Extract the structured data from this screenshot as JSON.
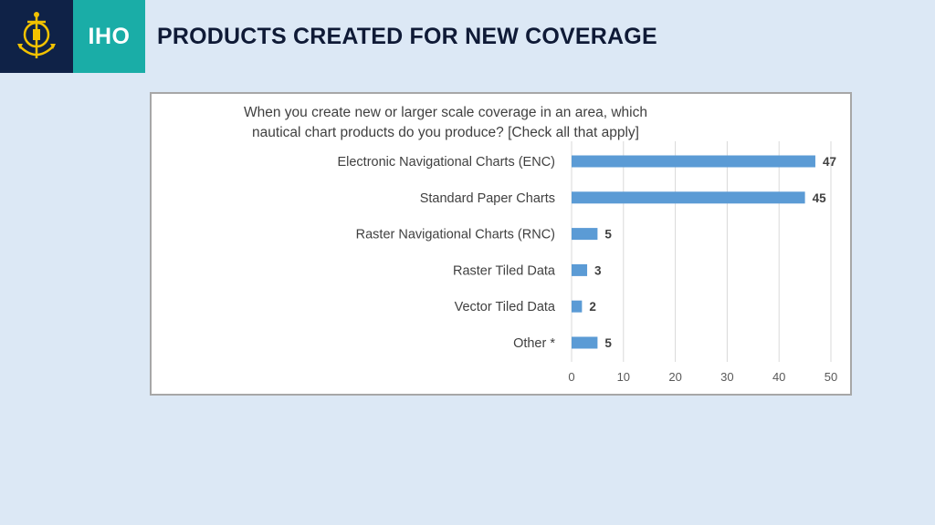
{
  "header": {
    "brand": "IHO",
    "title": "PRODUCTS CREATED FOR NEW COVERAGE",
    "logo_icon": "anchor-emblem-icon"
  },
  "colors": {
    "background": "#dce8f5",
    "logo_bg": "#0f2247",
    "brand_bg": "#1aada7",
    "bar": "#5b9bd5",
    "emblem": "#f2c200"
  },
  "chart_data": {
    "type": "bar",
    "orientation": "horizontal",
    "title_lines": [
      "When you create new or larger scale coverage in an area, which",
      "nautical chart products do you produce? [Check all that apply]"
    ],
    "categories": [
      "Electronic Navigational Charts (ENC)",
      "Standard Paper Charts",
      "Raster Navigational Charts (RNC)",
      "Raster Tiled Data",
      "Vector Tiled Data",
      "Other *"
    ],
    "values": [
      47,
      45,
      5,
      3,
      2,
      5
    ],
    "xlim": [
      0,
      50
    ],
    "xticks": [
      "0",
      "10",
      "20",
      "30",
      "40",
      "50"
    ],
    "grid": true,
    "data_labels": true
  }
}
